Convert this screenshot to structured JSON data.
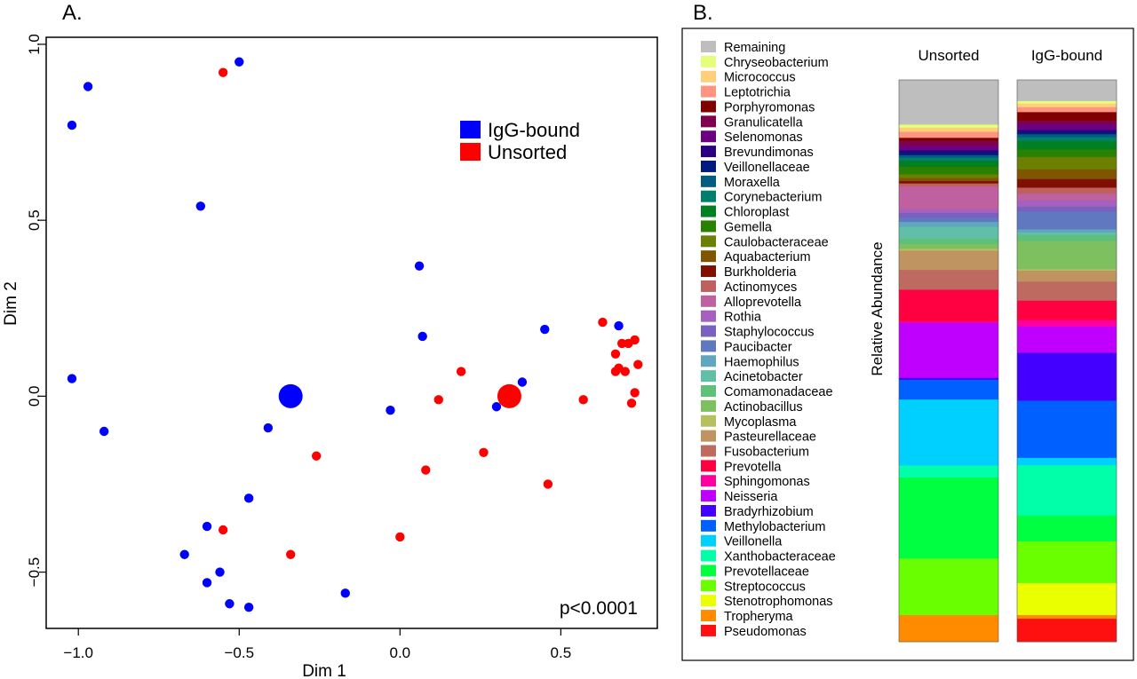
{
  "panel_a": {
    "label": "A.",
    "chart_data": {
      "type": "scatter",
      "xlabel": "Dim 1",
      "ylabel": "Dim 2",
      "xlim": [
        -1.1,
        0.8
      ],
      "ylim": [
        -0.66,
        1.02
      ],
      "xticks": [
        -1.0,
        -0.5,
        0.0,
        0.5
      ],
      "xtick_labels": [
        "−1.0",
        "−0.5",
        "0.0",
        "0.5"
      ],
      "yticks": [
        -0.5,
        0.0,
        0.5,
        1.0
      ],
      "ytick_labels": [
        "−0.5",
        "0.0",
        "0.5",
        "1.0"
      ],
      "grid": false,
      "legend_position": "top-right",
      "annotation": "p<0.0001",
      "series": [
        {
          "name": "IgG-bound",
          "color": "#0000ff",
          "points": [
            [
              -1.02,
              0.77
            ],
            [
              -0.97,
              0.88
            ],
            [
              -0.5,
              0.95
            ],
            [
              -0.62,
              0.54
            ],
            [
              -1.02,
              0.05
            ],
            [
              -0.92,
              -0.1
            ],
            [
              -0.41,
              -0.09
            ],
            [
              -0.47,
              -0.29
            ],
            [
              -0.6,
              -0.37
            ],
            [
              -0.67,
              -0.45
            ],
            [
              -0.56,
              -0.5
            ],
            [
              -0.6,
              -0.53
            ],
            [
              -0.53,
              -0.59
            ],
            [
              -0.47,
              -0.6
            ],
            [
              -0.17,
              -0.56
            ],
            [
              -0.03,
              -0.04
            ],
            [
              0.06,
              0.37
            ],
            [
              0.07,
              0.17
            ],
            [
              0.3,
              -0.03
            ],
            [
              0.38,
              0.04
            ],
            [
              0.45,
              0.19
            ],
            [
              0.68,
              0.2
            ]
          ],
          "centroid": [
            -0.34,
            0.0
          ]
        },
        {
          "name": "Unsorted",
          "color": "#ff0000",
          "points": [
            [
              -0.55,
              0.92
            ],
            [
              -0.26,
              -0.17
            ],
            [
              -0.55,
              -0.38
            ],
            [
              -0.34,
              -0.45
            ],
            [
              0.0,
              -0.4
            ],
            [
              0.08,
              -0.21
            ],
            [
              0.12,
              -0.01
            ],
            [
              0.19,
              0.07
            ],
            [
              0.26,
              -0.16
            ],
            [
              0.46,
              -0.25
            ],
            [
              0.57,
              -0.01
            ],
            [
              0.63,
              0.21
            ],
            [
              0.67,
              0.07
            ],
            [
              0.67,
              0.12
            ],
            [
              0.68,
              0.08
            ],
            [
              0.69,
              0.15
            ],
            [
              0.7,
              0.07
            ],
            [
              0.71,
              0.15
            ],
            [
              0.72,
              -0.02
            ],
            [
              0.73,
              0.01
            ],
            [
              0.73,
              0.16
            ],
            [
              0.74,
              0.09
            ]
          ],
          "centroid": [
            0.34,
            0.0
          ]
        }
      ]
    }
  },
  "panel_b": {
    "label": "B.",
    "chart_data": {
      "type": "bar",
      "stacked": true,
      "ylabel": "Relative Abundance",
      "categories": [
        "Unsorted",
        "IgG-bound"
      ],
      "legend": [
        {
          "name": "Remaining",
          "color": "#bebebe"
        },
        {
          "name": "Chryseobacterium",
          "color": "#e6ff7a"
        },
        {
          "name": "Micrococcus",
          "color": "#ffcf7a"
        },
        {
          "name": "Leptotrichia",
          "color": "#ff9580"
        },
        {
          "name": "Porphyromonas",
          "color": "#800000"
        },
        {
          "name": "Granulicatella",
          "color": "#800050"
        },
        {
          "name": "Selenomonas",
          "color": "#6b0080"
        },
        {
          "name": "Brevundimonas",
          "color": "#2a0080"
        },
        {
          "name": "Veillonellaceae",
          "color": "#001a80"
        },
        {
          "name": "Moraxella",
          "color": "#005c80"
        },
        {
          "name": "Corynebacterium",
          "color": "#00806b"
        },
        {
          "name": "Chloroplast",
          "color": "#008020"
        },
        {
          "name": "Gemella",
          "color": "#2a8000"
        },
        {
          "name": "Caulobacteraceae",
          "color": "#6b8000"
        },
        {
          "name": "Aquabacterium",
          "color": "#805500"
        },
        {
          "name": "Burkholderia",
          "color": "#800f00"
        },
        {
          "name": "Actinomyces",
          "color": "#bf6060"
        },
        {
          "name": "Alloprevotella",
          "color": "#bf60a0"
        },
        {
          "name": "Rothia",
          "color": "#a660bf"
        },
        {
          "name": "Staphylococcus",
          "color": "#7a60bf"
        },
        {
          "name": "Paucibacter",
          "color": "#6078bf"
        },
        {
          "name": "Haemophilus",
          "color": "#60a6bf"
        },
        {
          "name": "Acinetobacter",
          "color": "#60bfa6"
        },
        {
          "name": "Comamonadaceae",
          "color": "#60bf78"
        },
        {
          "name": "Actinobacillus",
          "color": "#7ebf60"
        },
        {
          "name": "Mycoplasma",
          "color": "#b8bf60"
        },
        {
          "name": "Pasteurellaceae",
          "color": "#bf9460"
        },
        {
          "name": "Fusobacterium",
          "color": "#bf6a60"
        },
        {
          "name": "Prevotella",
          "color": "#ff0040"
        },
        {
          "name": "Sphingomonas",
          "color": "#ff00a0"
        },
        {
          "name": "Neisseria",
          "color": "#c000ff"
        },
        {
          "name": "Bradyrhizobium",
          "color": "#4400ff"
        },
        {
          "name": "Methylobacterium",
          "color": "#0060ff"
        },
        {
          "name": "Veillonella",
          "color": "#00d0ff"
        },
        {
          "name": "Xanthobacteraceae",
          "color": "#00ffa8"
        },
        {
          "name": "Prevotellaceae",
          "color": "#00ff40"
        },
        {
          "name": "Streptococcus",
          "color": "#6aff00"
        },
        {
          "name": "Stenotrophomonas",
          "color": "#eaff00"
        },
        {
          "name": "Tropheryma",
          "color": "#ff8c00"
        },
        {
          "name": "Pseudomonas",
          "color": "#ff1010"
        }
      ],
      "series": [
        {
          "name": "Pseudomonas",
          "values": [
            0.0,
            3.8
          ]
        },
        {
          "name": "Tropheryma",
          "values": [
            4.5,
            0.6
          ]
        },
        {
          "name": "Stenotrophomonas",
          "values": [
            0.0,
            5.2
          ]
        },
        {
          "name": "Streptococcus",
          "values": [
            9.4,
            6.8
          ]
        },
        {
          "name": "Prevotellaceae",
          "values": [
            13.5,
            4.2
          ]
        },
        {
          "name": "Xanthobacteraceae",
          "values": [
            2.0,
            8.2
          ]
        },
        {
          "name": "Veillonella",
          "values": [
            11.0,
            1.2
          ]
        },
        {
          "name": "Methylobacterium",
          "values": [
            3.3,
            9.3
          ]
        },
        {
          "name": "Bradyrhizobium",
          "values": [
            0.3,
            7.8
          ]
        },
        {
          "name": "Neisseria",
          "values": [
            9.2,
            4.3
          ]
        },
        {
          "name": "Sphingomonas",
          "values": [
            0.2,
            1.0
          ]
        },
        {
          "name": "Prevotella",
          "values": [
            5.3,
            3.2
          ]
        },
        {
          "name": "Fusobacterium",
          "values": [
            3.3,
            3.1
          ]
        },
        {
          "name": "Pasteurellaceae",
          "values": [
            3.2,
            1.8
          ]
        },
        {
          "name": "Mycoplasma",
          "values": [
            0.3,
            0.2
          ]
        },
        {
          "name": "Actinobacillus",
          "values": [
            0.8,
            4.6
          ]
        },
        {
          "name": "Comamonadaceae",
          "values": [
            0.9,
            1.0
          ]
        },
        {
          "name": "Acinetobacter",
          "values": [
            2.0,
            0.4
          ]
        },
        {
          "name": "Haemophilus",
          "values": [
            0.8,
            0.5
          ]
        },
        {
          "name": "Paucibacter",
          "values": [
            0.7,
            2.9
          ]
        },
        {
          "name": "Staphylococcus",
          "values": [
            0.8,
            0.8
          ]
        },
        {
          "name": "Rothia",
          "values": [
            0.6,
            1.0
          ]
        },
        {
          "name": "Alloprevotella",
          "values": [
            3.8,
            1.1
          ]
        },
        {
          "name": "Actinomyces",
          "values": [
            0.5,
            1.0
          ]
        },
        {
          "name": "Burkholderia",
          "values": [
            0.4,
            1.4
          ]
        },
        {
          "name": "Aquabacterium",
          "values": [
            0.5,
            1.6
          ]
        },
        {
          "name": "Caulobacteraceae",
          "values": [
            0.6,
            2.0
          ]
        },
        {
          "name": "Gemella",
          "values": [
            1.3,
            1.2
          ]
        },
        {
          "name": "Chloroplast",
          "values": [
            1.0,
            1.4
          ]
        },
        {
          "name": "Corynebacterium",
          "values": [
            0.5,
            0.6
          ]
        },
        {
          "name": "Moraxella",
          "values": [
            0.4,
            0.5
          ]
        },
        {
          "name": "Veillonellaceae",
          "values": [
            0.5,
            0.4
          ]
        },
        {
          "name": "Brevundimonas",
          "values": [
            0.3,
            0.3
          ]
        },
        {
          "name": "Selenomonas",
          "values": [
            0.8,
            0.9
          ]
        },
        {
          "name": "Granulicatella",
          "values": [
            0.8,
            0.6
          ]
        },
        {
          "name": "Porphyromonas",
          "values": [
            0.5,
            1.4
          ]
        },
        {
          "name": "Leptotrichia",
          "values": [
            1.0,
            0.8
          ]
        },
        {
          "name": "Micrococcus",
          "values": [
            0.7,
            0.6
          ]
        },
        {
          "name": "Chryseobacterium",
          "values": [
            0.5,
            0.4
          ]
        },
        {
          "name": "Remaining",
          "values": [
            7.4,
            3.4
          ]
        }
      ]
    }
  }
}
